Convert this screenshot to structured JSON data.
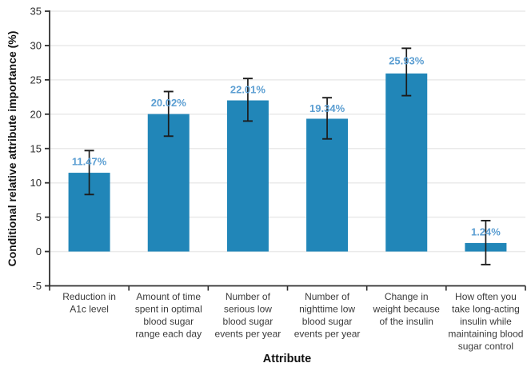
{
  "chart_data": {
    "type": "bar",
    "title": "",
    "xlabel": "Attribute",
    "ylabel": "Conditional relative attribute importance (%)",
    "ylim": [
      -5,
      35
    ],
    "yticks": [
      -5,
      0,
      5,
      10,
      15,
      20,
      25,
      30,
      35
    ],
    "grid": "horizontal-on",
    "legend_position": "none",
    "categories": [
      "Reduction in A1c level",
      "Amount of time spent in optimal blood sugar range each day",
      "Number of serious low blood sugar events per year",
      "Number of nighttime low blood sugar events per year",
      "Change in weight because of the insulin",
      "How often you take long-acting insulin while maintaining blood sugar control"
    ],
    "category_lines": [
      [
        "Reduction in",
        "A1c level"
      ],
      [
        "Amount of time",
        "spent in optimal",
        "blood sugar",
        "range each day"
      ],
      [
        "Number of",
        "serious low",
        "blood sugar",
        "events per year"
      ],
      [
        "Number of",
        "nighttime low",
        "blood sugar",
        "events per year"
      ],
      [
        "Change in",
        "weight because",
        "of the insulin"
      ],
      [
        "How often you",
        "take long-acting",
        "insulin while",
        "maintaining blood",
        "sugar control"
      ]
    ],
    "values": [
      11.47,
      20.02,
      22.01,
      19.34,
      25.93,
      1.24
    ],
    "value_labels": [
      "11.47%",
      "20.02%",
      "22.01%",
      "19.34%",
      "25.93%",
      "1.24%"
    ],
    "error_low": [
      8.3,
      16.8,
      19.0,
      16.4,
      22.7,
      -1.9
    ],
    "error_high": [
      14.7,
      23.3,
      25.2,
      22.4,
      29.6,
      4.5
    ],
    "colors": {
      "bar": "#2186b8",
      "value_label": "#5b9ed2",
      "error_bar": "#1c1c1c",
      "grid": "#eaeaea",
      "axis": "#2f2f2f",
      "category_text": "#3a3a3a"
    }
  }
}
